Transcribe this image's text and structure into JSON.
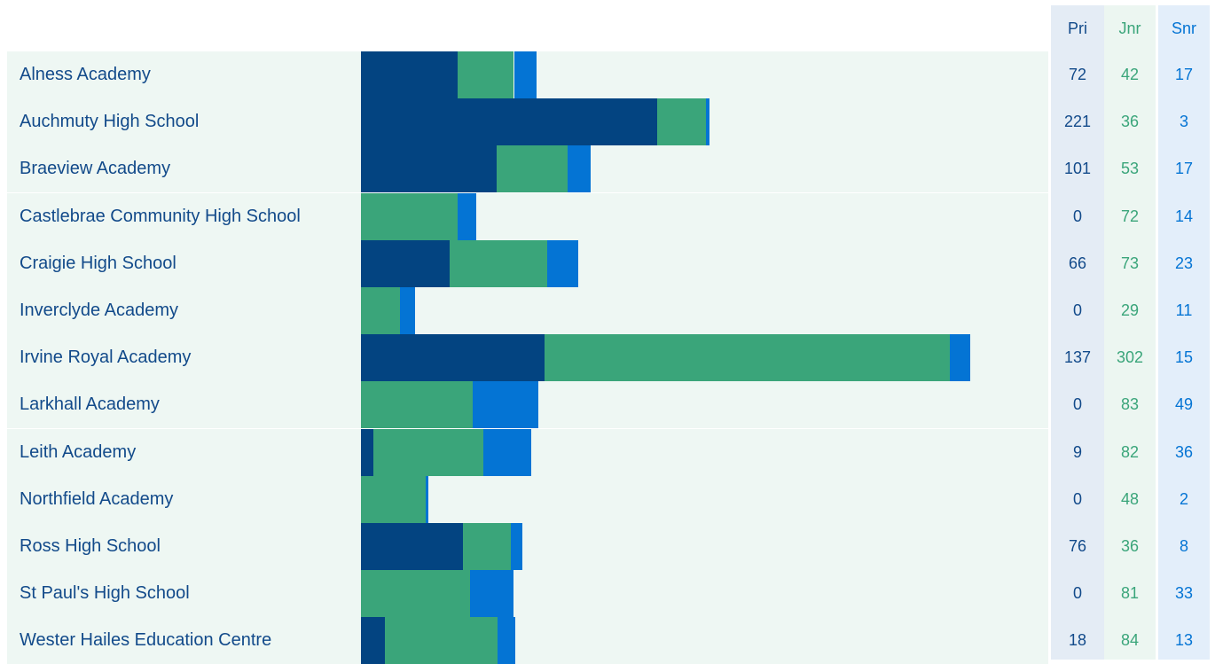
{
  "chart_data": {
    "type": "bar",
    "orientation": "horizontal",
    "stacked": true,
    "categories": [
      "Alness Academy",
      "Auchmuty High School",
      "Braeview Academy",
      "Castlebrae Community High School",
      "Craigie High School",
      "Inverclyde Academy",
      "Irvine Royal Academy",
      "Larkhall Academy",
      "Leith Academy",
      "Northfield Academy",
      "Ross High School",
      "St Paul's High School",
      "Wester Hailes Education Centre"
    ],
    "series": [
      {
        "name": "Pri",
        "color": "#034481",
        "values": [
          72,
          221,
          101,
          0,
          66,
          0,
          137,
          0,
          9,
          0,
          76,
          0,
          18
        ]
      },
      {
        "name": "Jnr",
        "color": "#3aa57a",
        "values": [
          42,
          36,
          53,
          72,
          73,
          29,
          302,
          83,
          82,
          48,
          36,
          81,
          84
        ]
      },
      {
        "name": "Snr",
        "color": "#0474d4",
        "values": [
          17,
          3,
          17,
          14,
          23,
          11,
          15,
          49,
          36,
          2,
          8,
          33,
          13
        ]
      }
    ],
    "xlim": [
      0,
      454
    ]
  },
  "colors": {
    "pri_text": "#124a8a",
    "jnr_text": "#3aa57a",
    "snr_text": "#0474d4",
    "pri_col_bg": "#e4ecf5",
    "jnr_col_bg": "#ecf6f1",
    "snr_col_bg": "#e3eefa",
    "row_bg": "#eef7f3",
    "name_text": "#124a8a"
  }
}
